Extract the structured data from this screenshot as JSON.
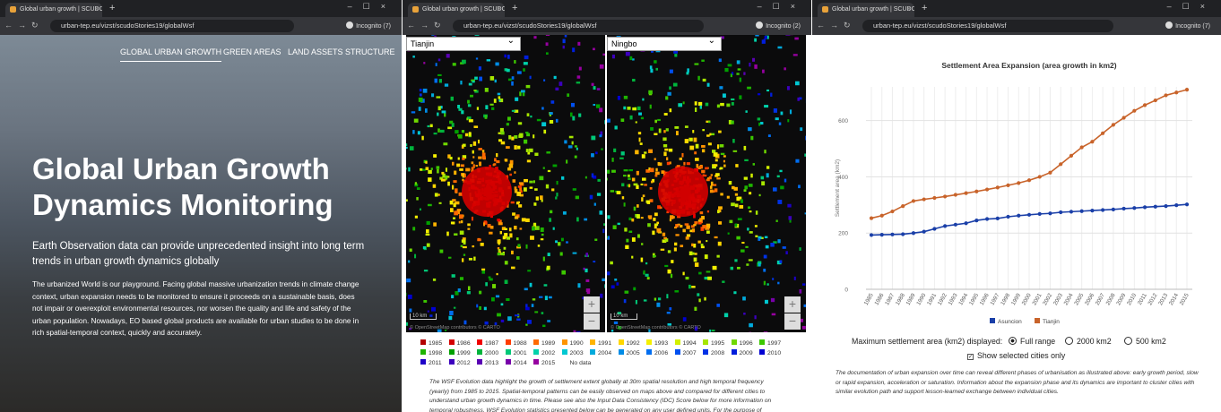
{
  "windows": [
    {
      "tab_title": "Global urban growth | SCUDO",
      "url": "urban-tep.eu/vizst/scudoStories19/globalWsf",
      "profile": "Incognito (7)"
    },
    {
      "tab_title": "Global urban growth | SCUDO",
      "url": "urban-tep.eu/vizst/scudoStories19/globalWsf",
      "profile": "Incognito (2)"
    },
    {
      "tab_title": "Global urban growth | SCUDO",
      "url": "urban-tep.eu/vizst/scudoStories19/globalWsf",
      "profile": "Incognito (7)"
    }
  ],
  "landing": {
    "menu": [
      "GLOBAL URBAN GROWTH",
      "GREEN AREAS",
      "LAND ASSETS STRUCTURE"
    ],
    "title": "Global Urban Growth Dynamics Monitoring",
    "lead": "Earth Observation data can provide unprecedented insight into long term trends in urban growth dynamics globally",
    "body": "The urbanized World is our playground. Facing global massive urbanization trends in climate change context, urban expansion needs to be monitored to ensure it proceeds on a sustainable basis, does not impair or overexploit environmental resources, nor worsen the quality and life and safety of the urban population. Nowadays, EO based global products are available for urban studies to be done in rich spatial-temporal context, quickly and accurately."
  },
  "maps": {
    "panels": [
      {
        "city": "Tianjin",
        "scale": "10 km"
      },
      {
        "city": "Ningbo",
        "scale": "10 km"
      }
    ],
    "attribution": "© OpenStreetMap contributors © CARTO",
    "legend": [
      {
        "label": "1985",
        "color": "#b30000"
      },
      {
        "label": "1986",
        "color": "#d40000"
      },
      {
        "label": "1987",
        "color": "#f00000"
      },
      {
        "label": "1988",
        "color": "#ff3c00"
      },
      {
        "label": "1989",
        "color": "#ff6a00"
      },
      {
        "label": "1990",
        "color": "#ff9400"
      },
      {
        "label": "1991",
        "color": "#ffb400"
      },
      {
        "label": "1992",
        "color": "#ffd700"
      },
      {
        "label": "1993",
        "color": "#f5f000"
      },
      {
        "label": "1994",
        "color": "#d2f000"
      },
      {
        "label": "1995",
        "color": "#a6e600"
      },
      {
        "label": "1996",
        "color": "#70d800"
      },
      {
        "label": "1997",
        "color": "#3cc800"
      },
      {
        "label": "1998",
        "color": "#1eb400"
      },
      {
        "label": "1999",
        "color": "#00a000"
      },
      {
        "label": "2000",
        "color": "#00b43c"
      },
      {
        "label": "2001",
        "color": "#00c878"
      },
      {
        "label": "2002",
        "color": "#00d2aa"
      },
      {
        "label": "2003",
        "color": "#00c8d2"
      },
      {
        "label": "2004",
        "color": "#00aadc"
      },
      {
        "label": "2005",
        "color": "#008ce6"
      },
      {
        "label": "2006",
        "color": "#006ef0"
      },
      {
        "label": "2007",
        "color": "#0050f0"
      },
      {
        "label": "2008",
        "color": "#0032e6"
      },
      {
        "label": "2009",
        "color": "#001edc"
      },
      {
        "label": "2010",
        "color": "#0000d2"
      },
      {
        "label": "2011",
        "color": "#1e00c8"
      },
      {
        "label": "2012",
        "color": "#3c00be"
      },
      {
        "label": "2013",
        "color": "#5a00b4"
      },
      {
        "label": "2014",
        "color": "#7800aa"
      },
      {
        "label": "2015",
        "color": "#9600a0"
      },
      {
        "label": "No data",
        "color": "#ffffff"
      }
    ],
    "text": "The WSF Evolution data highlight the growth of settlement extent globally at 30m spatial resolution and high temporal frequency (yearly) from 1985 to 2015. Spatial-temporal patterns can be easily observed on maps above and compared for different cities to understand urban growth dynamics in time. Please see also the Input Data Consistency (IDC) Score below for more information on temporal robustness. WSF Evolution statistics presented below can be generated on any user defined units. For the purpose of"
  },
  "chart": {
    "type": "line",
    "title": "Settlement Area Expansion (area growth in km2)",
    "y_label": "Settlement area (km2)",
    "categories": [
      "1985",
      "1986",
      "1987",
      "1988",
      "1989",
      "1990",
      "1991",
      "1992",
      "1993",
      "1994",
      "1995",
      "1996",
      "1997",
      "1998",
      "1999",
      "2000",
      "2001",
      "2002",
      "2003",
      "2004",
      "2005",
      "2006",
      "2007",
      "2008",
      "2009",
      "2010",
      "2011",
      "2012",
      "2013",
      "2014",
      "2015"
    ],
    "series": [
      {
        "name": "Asuncion",
        "color": "#1a3fa8",
        "values": [
          193,
          194,
          195,
          196,
          200,
          205,
          215,
          225,
          230,
          235,
          245,
          250,
          252,
          258,
          262,
          265,
          268,
          270,
          274,
          276,
          278,
          280,
          282,
          284,
          287,
          289,
          292,
          294,
          296,
          299,
          302
        ]
      },
      {
        "name": "Tianjin",
        "color": "#c8632a",
        "values": [
          253,
          262,
          277,
          296,
          314,
          320,
          325,
          330,
          336,
          342,
          348,
          355,
          362,
          370,
          378,
          388,
          400,
          415,
          445,
          475,
          505,
          525,
          555,
          585,
          610,
          635,
          655,
          672,
          690,
          700,
          710
        ]
      }
    ],
    "ylim": [
      0,
      720
    ],
    "yticks": [
      0,
      200,
      400,
      600
    ],
    "grid": true
  },
  "controls": {
    "label": "Maximum settlement area (km2) displayed:",
    "options": [
      "Full range",
      "2000 km2",
      "500 km2"
    ],
    "checkbox": "Show selected cities only",
    "text": "The documentation of urban expansion over time can reveal different phases of urbanisation as illustrated above:  early growth period, slow or rapid expansion, acceleration or saturation. Information about the expansion phase and its dynamics are important to cluster cities with similar evolution path and support lesson-learned exchange between individual cities."
  }
}
